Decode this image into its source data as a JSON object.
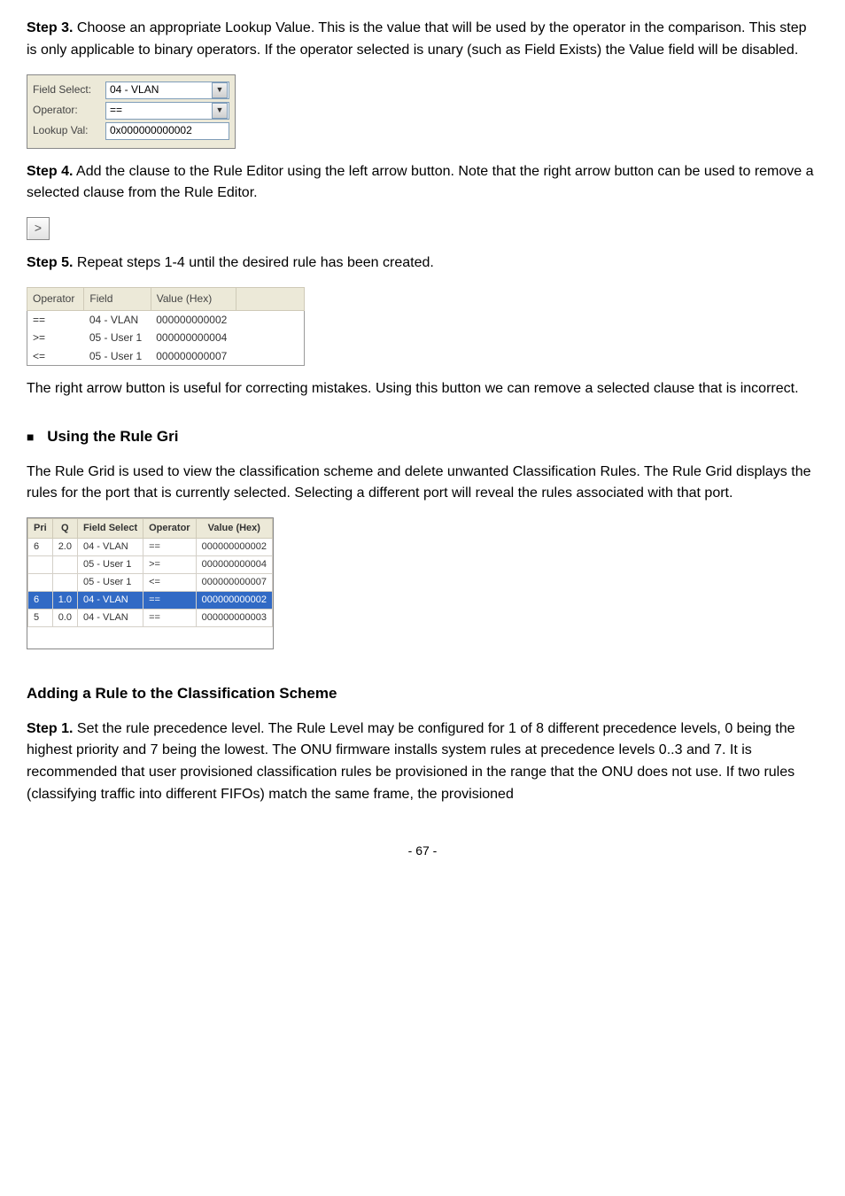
{
  "intro": {
    "step3_label": "Step 3.",
    "step3_text": " Choose an appropriate Lookup Value. This is the value that will be used by the operator in the comparison. This step is only applicable to binary operators. If the operator selected is unary (such as Field Exists) the Value field will be disabled."
  },
  "form": {
    "field_select_label": "Field Select:",
    "field_select_value": "04 - VLAN",
    "operator_label": "Operator:",
    "operator_value": "==",
    "lookup_label": "Lookup Val:",
    "lookup_value": "0x000000000002"
  },
  "step4": {
    "label": "Step 4.",
    "text": " Add the clause to the Rule Editor using the left arrow button. Note that the right arrow button can be used to remove a selected clause from the Rule Editor."
  },
  "arrow_char": ">",
  "step5": {
    "label": "Step 5.",
    "text": " Repeat steps 1-4 until the desired rule has been created."
  },
  "rule_table": {
    "headers": [
      "Operator",
      "Field",
      "Value (Hex)"
    ],
    "rows": [
      {
        "op": "==",
        "field": "04 - VLAN",
        "val": "000000000002"
      },
      {
        "op": ">=",
        "field": "05 - User 1",
        "val": "000000000004"
      },
      {
        "op": "<=",
        "field": "05 - User 1",
        "val": "000000000007"
      }
    ]
  },
  "after_table": "The right arrow button is useful for correcting mistakes. Using this button we can remove a selected clause that is incorrect.",
  "using_heading": "Using the Rule Gri",
  "using_para": "The Rule Grid is used to view the classification scheme and delete unwanted Classification Rules. The Rule Grid displays the rules for the port that is currently selected. Selecting a different port will reveal the rules associated with that port.",
  "rule_grid": {
    "headers": [
      "Pri",
      "Q",
      "Field Select",
      "Operator",
      "Value (Hex)"
    ],
    "rows": [
      {
        "pri": "6",
        "q": "2.0",
        "fs": "04 - VLAN",
        "op": "==",
        "val": "000000000002",
        "sel": false
      },
      {
        "pri": "",
        "q": "",
        "fs": "05 - User 1",
        "op": ">=",
        "val": "000000000004",
        "sel": false
      },
      {
        "pri": "",
        "q": "",
        "fs": "05 - User 1",
        "op": "<=",
        "val": "000000000007",
        "sel": false
      },
      {
        "pri": "6",
        "q": "1.0",
        "fs": "04 - VLAN",
        "op": "==",
        "val": "000000000002",
        "sel": true
      },
      {
        "pri": "5",
        "q": "0.0",
        "fs": "04 - VLAN",
        "op": "==",
        "val": "000000000003",
        "sel": false
      }
    ]
  },
  "adding_heading": "Adding a Rule to the Classification Scheme",
  "adding_step1_label": "Step 1.",
  "adding_step1_text": " Set the rule precedence level. The Rule Level may be configured for 1 of 8 different precedence levels, 0 being the highest priority and 7 being the lowest. The ONU firmware installs system rules at precedence levels 0..3 and 7. It is recommended that user provisioned classification rules be provisioned in the range that the ONU does not use. If two rules (classifying traffic into different FIFOs) match the same frame, the provisioned",
  "page_number": "- 67 -"
}
